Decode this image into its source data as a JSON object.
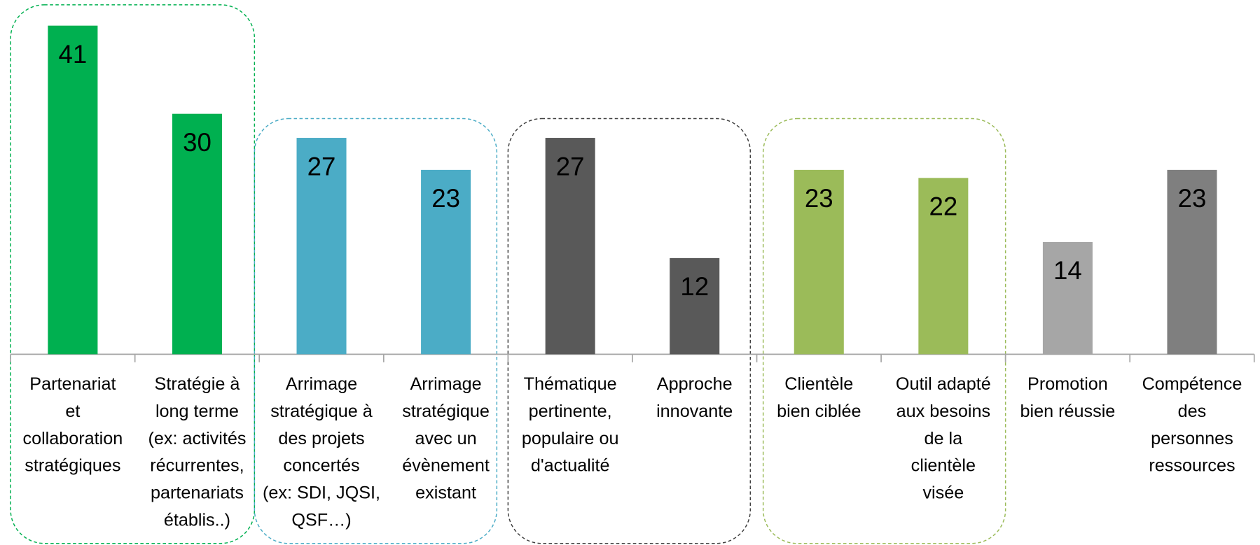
{
  "chart_data": {
    "type": "bar",
    "categories": [
      "Partenariat\net\ncollaboration\nstratégiques",
      "Stratégie à\nlong terme\n(ex: activités\nrécurrentes,\npartenariats\nétablis..)",
      "Arrimage\nstratégique à\ndes projets\nconcertés\n(ex: SDI, JQSI,\nQSF…)",
      "Arrimage\nstratégique\navec un\névènement\nexistant",
      "Thématique\npertinente,\npopulaire ou\nd'actualité",
      "Approche\ninnovante",
      "Clientèle\nbien ciblée",
      "Outil adapté\naux besoins\nde la\nclientèle\nvisée",
      "Promotion\nbien réussie",
      "Compétence\ndes\npersonnes\nressources"
    ],
    "values": [
      41,
      30,
      27,
      23,
      27,
      12,
      23,
      22,
      14,
      23
    ],
    "colors": [
      "#00b050",
      "#00b050",
      "#4bacc6",
      "#4bacc6",
      "#595959",
      "#595959",
      "#9bbb59",
      "#9bbb59",
      "#a6a6a6",
      "#7f7f7f"
    ],
    "ylim": [
      0,
      44
    ]
  }
}
